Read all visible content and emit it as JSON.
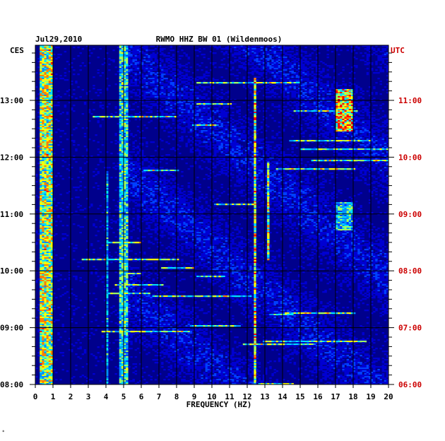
{
  "chart_data": {
    "type": "heatmap",
    "title": "RWMO HHZ BW 01 (Wildenmoos)",
    "date": "Jul29,2010",
    "xlabel": "FREQUENCY (HZ)",
    "xlim": [
      0,
      20
    ],
    "x_ticks": [
      "0",
      "1",
      "2",
      "3",
      "4",
      "5",
      "6",
      "7",
      "8",
      "9",
      "10",
      "11",
      "12",
      "13",
      "14",
      "15",
      "16",
      "17",
      "18",
      "19",
      "20"
    ],
    "left_axis": {
      "zone": "CES",
      "ticks": [
        {
          "t": 8,
          "label": "08:00"
        },
        {
          "t": 9,
          "label": "09:00"
        },
        {
          "t": 10,
          "label": "10:00"
        },
        {
          "t": 11,
          "label": "11:00"
        },
        {
          "t": 12,
          "label": "12:00"
        },
        {
          "t": 13,
          "label": "13:00"
        }
      ]
    },
    "right_axis": {
      "zone": "UTC",
      "color": "#cc0000",
      "ticks": [
        {
          "t": 8,
          "label": "06:00"
        },
        {
          "t": 9,
          "label": "07:00"
        },
        {
          "t": 10,
          "label": "08:00"
        },
        {
          "t": 11,
          "label": "09:00"
        },
        {
          "t": 12,
          "label": "10:00"
        },
        {
          "t": 13,
          "label": "11:00"
        }
      ]
    },
    "time_range_local_hours": [
      8.0,
      13.97
    ],
    "grid": true,
    "colormap": [
      "#00008c",
      "#0000d2",
      "#0040ff",
      "#0090ff",
      "#00e0ff",
      "#a0ff60",
      "#ffff00",
      "#ff8000",
      "#ff0000"
    ],
    "features": [
      {
        "name": "microseism",
        "freq": [
          0.2,
          1.0
        ],
        "time": [
          8.0,
          13.97
        ],
        "intensity": 0.85
      },
      {
        "name": "line-4hz",
        "freq": [
          4.0,
          4.15
        ],
        "time": [
          8.0,
          11.75
        ],
        "intensity": 0.55
      },
      {
        "name": "line-5hz",
        "freq": [
          4.8,
          5.3
        ],
        "time": [
          8.0,
          13.97
        ],
        "intensity": 0.65
      },
      {
        "name": "line-12.5hz",
        "freq": [
          12.4,
          12.55
        ],
        "time": [
          8.0,
          13.4
        ],
        "intensity": 0.9
      },
      {
        "name": "line-13.2hz",
        "freq": [
          13.1,
          13.3
        ],
        "time": [
          10.2,
          11.9
        ],
        "intensity": 0.8
      },
      {
        "name": "burst-17.5hz",
        "freq": [
          17.0,
          18.0
        ],
        "time": [
          12.45,
          13.2
        ],
        "intensity": 1.0
      },
      {
        "name": "burst-17.5hz-b",
        "freq": [
          17.0,
          18.0
        ],
        "time": [
          10.7,
          11.2
        ],
        "intensity": 0.6
      }
    ],
    "tiny_mark": "*"
  }
}
